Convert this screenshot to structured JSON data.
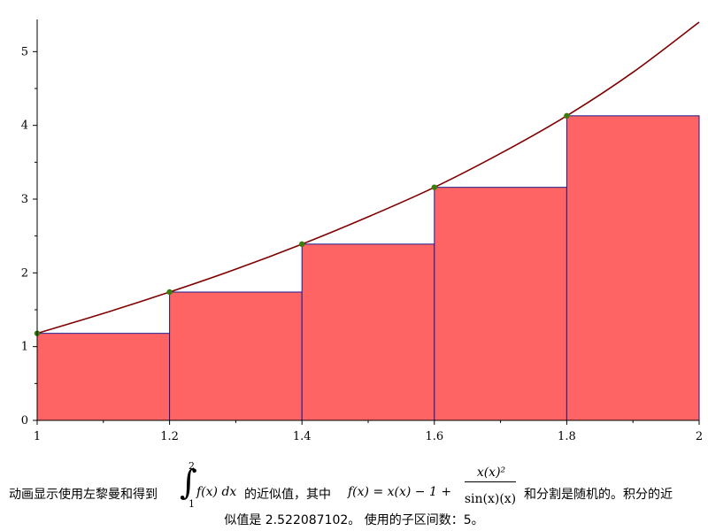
{
  "chart_data": {
    "type": "bar",
    "subtype": "left-riemann-sum",
    "x_edges": [
      1,
      1.2,
      1.4,
      1.6,
      1.8,
      2
    ],
    "rect_heights": [
      1.18,
      1.74,
      2.39,
      3.16,
      4.13
    ],
    "sample_points": [
      {
        "x": 1.0,
        "y": 1.18
      },
      {
        "x": 1.2,
        "y": 1.74
      },
      {
        "x": 1.4,
        "y": 2.39
      },
      {
        "x": 1.6,
        "y": 3.16
      },
      {
        "x": 1.8,
        "y": 4.13
      }
    ],
    "curve": {
      "x": [
        1.0,
        1.1,
        1.2,
        1.3,
        1.4,
        1.5,
        1.6,
        1.7,
        1.8,
        1.9,
        2.0
      ],
      "y": [
        1.18,
        1.45,
        1.74,
        2.05,
        2.39,
        2.76,
        3.16,
        3.62,
        4.13,
        4.72,
        5.4
      ]
    },
    "xlim": [
      1,
      2
    ],
    "ylim": [
      0,
      5.4
    ],
    "x_ticks": [
      "1",
      "1.2",
      "1.4",
      "1.6",
      "1.8",
      "2"
    ],
    "y_ticks": [
      "0",
      "1",
      "2",
      "3",
      "4",
      "5"
    ],
    "colors": {
      "rect_fill": "#ff6464",
      "rect_edge": "#1a1a8c",
      "curve": "#800000",
      "points": "#3a7d0a",
      "axes": "#000000"
    }
  },
  "caption": {
    "line1_a": "动画显示使用左黎曼和得到",
    "integral_upper": "2",
    "integral_lower": "1",
    "integrand": "f(x) dx",
    "line1_b": "的近似值，其中",
    "fx": "f(x) = x(x) − 1 + ",
    "frac_num": "x(x)²",
    "frac_den": "sin(x)(x)",
    "line1_c": "和分割是随机的。积分的近",
    "line2": "似值是 2.522087102。  使用的子区间数：5。"
  }
}
